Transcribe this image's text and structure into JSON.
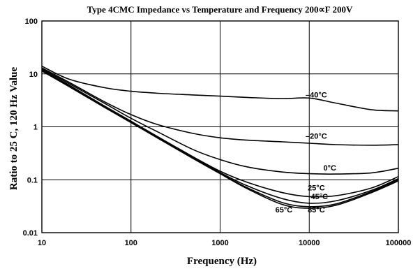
{
  "chart_data": {
    "type": "line",
    "title": "Type 4CMC Impedance vs Temperature and Frequency 200∝F 200V",
    "xlabel": "Frequency (Hz)",
    "ylabel": "Ratio to 25 C, 120 Hz Value",
    "x_scale": "log",
    "y_scale": "log",
    "xlim": [
      10,
      100000
    ],
    "ylim": [
      0.01,
      100
    ],
    "grid": true,
    "x_ticks": [
      "10",
      "100",
      "1000",
      "10000",
      "100000"
    ],
    "y_ticks": [
      "100",
      "10",
      "1",
      "0.1",
      "0.01"
    ],
    "x": [
      10,
      20,
      50,
      100,
      200,
      500,
      1000,
      2000,
      5000,
      10000,
      20000,
      50000,
      100000
    ],
    "series": [
      {
        "name": "–40°C",
        "label_at": [
          12000,
          3.6
        ],
        "values": [
          14,
          8,
          5.5,
          4.7,
          4.3,
          4.0,
          3.8,
          3.6,
          3.4,
          3.5,
          2.8,
          2.1,
          2.0
        ]
      },
      {
        "name": "–20°C",
        "label_at": [
          12000,
          0.6
        ],
        "values": [
          13,
          7,
          3.0,
          1.7,
          1.1,
          0.75,
          0.62,
          0.56,
          0.52,
          0.49,
          0.46,
          0.45,
          0.46
        ]
      },
      {
        "name": "0°C",
        "label_at": [
          17000,
          0.15
        ],
        "values": [
          12.5,
          6.6,
          2.8,
          1.45,
          0.8,
          0.37,
          0.24,
          0.175,
          0.14,
          0.13,
          0.128,
          0.135,
          0.165
        ]
      },
      {
        "name": "25°C",
        "label_at": [
          12000,
          0.063
        ],
        "values": [
          12,
          6.2,
          2.5,
          1.28,
          0.65,
          0.27,
          0.145,
          0.09,
          0.057,
          0.048,
          0.05,
          0.07,
          0.115
        ]
      },
      {
        "name": "45°C",
        "label_at": [
          13000,
          0.043
        ],
        "values": [
          11.8,
          6.0,
          2.45,
          1.25,
          0.63,
          0.26,
          0.137,
          0.077,
          0.044,
          0.036,
          0.04,
          0.063,
          0.105
        ]
      },
      {
        "name": "65°C",
        "label_at": [
          5200,
          0.024
        ],
        "values": [
          11.5,
          5.9,
          2.4,
          1.22,
          0.62,
          0.255,
          0.132,
          0.071,
          0.037,
          0.031,
          0.035,
          0.06,
          0.1
        ]
      },
      {
        "name": "85°C",
        "label_at": [
          12000,
          0.024
        ],
        "values": [
          11.3,
          5.8,
          2.35,
          1.2,
          0.61,
          0.25,
          0.13,
          0.068,
          0.034,
          0.029,
          0.033,
          0.057,
          0.095
        ]
      }
    ]
  }
}
